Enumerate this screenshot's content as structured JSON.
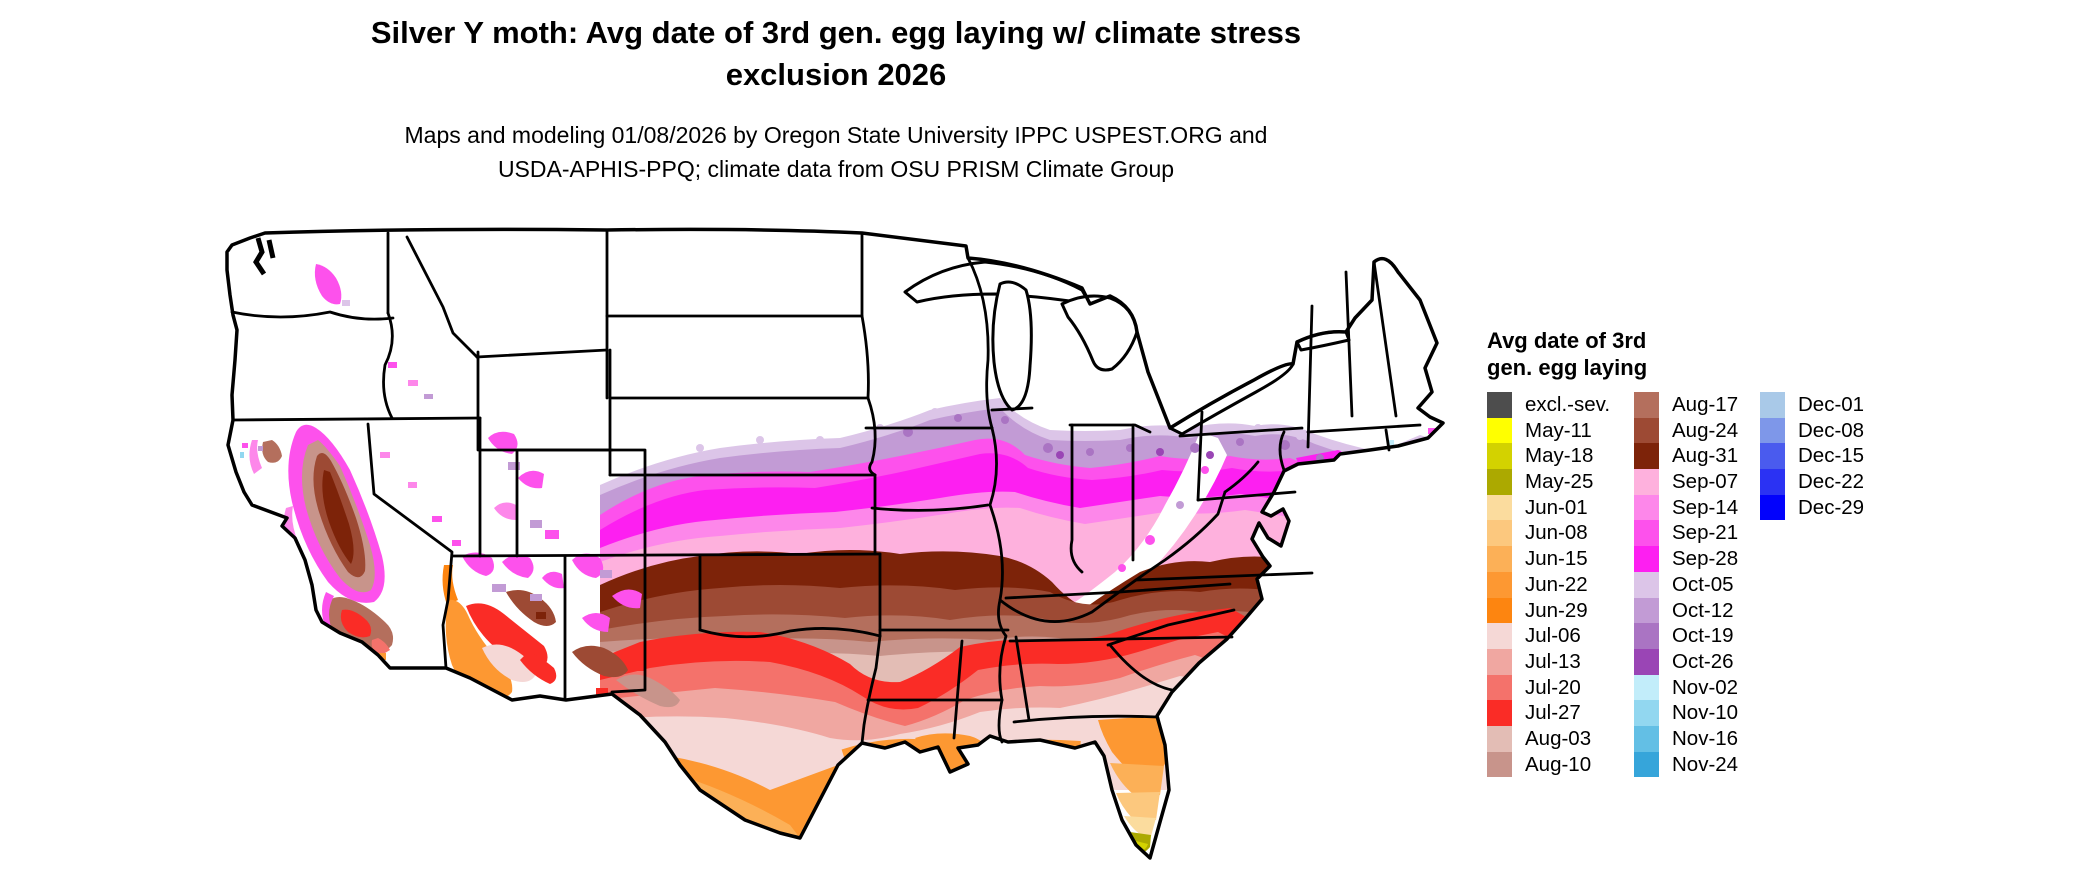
{
  "title": {
    "line1": "Silver Y moth: Avg date of 3rd gen. egg laying w/ climate stress",
    "line2": "exclusion 2026"
  },
  "subtitle": {
    "line1": "Maps and modeling 01/08/2026 by Oregon State University IPPC USPEST.ORG and",
    "line2": "USDA-APHIS-PPQ; climate data from OSU PRISM Climate Group"
  },
  "legend": {
    "title_line1": "Avg date of 3rd",
    "title_line2": "gen. egg laying",
    "columns": [
      [
        {
          "label": "excl.-sev.",
          "color": "#4d4d4d"
        },
        {
          "label": "May-11",
          "color": "#ffff00"
        },
        {
          "label": "May-18",
          "color": "#d3d200"
        },
        {
          "label": "May-25",
          "color": "#aca900"
        },
        {
          "label": "Jun-01",
          "color": "#fbdc9e"
        },
        {
          "label": "Jun-08",
          "color": "#fcc87e"
        },
        {
          "label": "Jun-15",
          "color": "#fcb057"
        },
        {
          "label": "Jun-22",
          "color": "#fd9832"
        },
        {
          "label": "Jun-29",
          "color": "#fd8510"
        },
        {
          "label": "Jul-06",
          "color": "#f5d8d6"
        },
        {
          "label": "Jul-13",
          "color": "#f0a7a1"
        },
        {
          "label": "Jul-20",
          "color": "#f4726b"
        },
        {
          "label": "Jul-27",
          "color": "#fa2c26"
        },
        {
          "label": "Aug-03",
          "color": "#e3bdb5"
        },
        {
          "label": "Aug-10",
          "color": "#c8948b"
        }
      ],
      [
        {
          "label": "Aug-17",
          "color": "#b46f5d"
        },
        {
          "label": "Aug-24",
          "color": "#9d4a34"
        },
        {
          "label": "Aug-31",
          "color": "#7d2309"
        },
        {
          "label": "Sep-07",
          "color": "#feb1dd"
        },
        {
          "label": "Sep-14",
          "color": "#fd87ea"
        },
        {
          "label": "Sep-21",
          "color": "#fd51ec"
        },
        {
          "label": "Sep-28",
          "color": "#fd1ff1"
        },
        {
          "label": "Oct-05",
          "color": "#dcc5e8"
        },
        {
          "label": "Oct-12",
          "color": "#c29bd5"
        },
        {
          "label": "Oct-19",
          "color": "#aa74c3"
        },
        {
          "label": "Oct-26",
          "color": "#9a45b5"
        },
        {
          "label": "Nov-02",
          "color": "#c2edfa"
        },
        {
          "label": "Nov-10",
          "color": "#92d7f0"
        },
        {
          "label": "Nov-16",
          "color": "#63bfe5"
        },
        {
          "label": "Nov-24",
          "color": "#36a5da"
        }
      ],
      [
        {
          "label": "Dec-01",
          "color": "#a9c9e8"
        },
        {
          "label": "Dec-08",
          "color": "#7e97e9"
        },
        {
          "label": "Dec-15",
          "color": "#4a5bee"
        },
        {
          "label": "Dec-22",
          "color": "#2b32f3"
        },
        {
          "label": "Dec-29",
          "color": "#0202fc"
        }
      ]
    ]
  }
}
